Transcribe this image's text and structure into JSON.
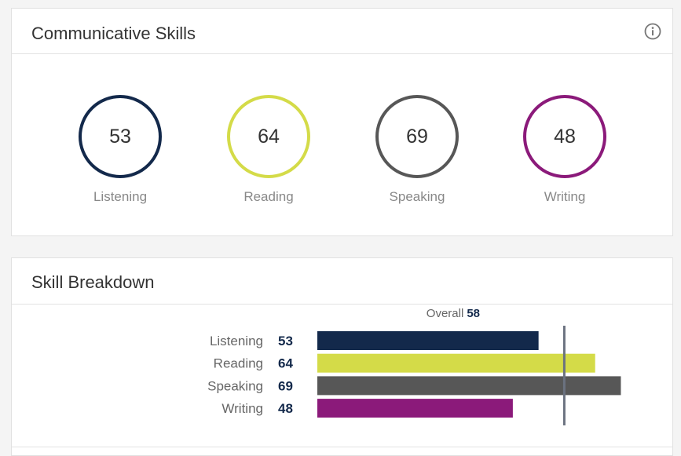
{
  "skills_card": {
    "title": "Communicative Skills",
    "skills": [
      {
        "label": "Listening",
        "score": "53",
        "color": "#13294b"
      },
      {
        "label": "Reading",
        "score": "64",
        "color": "#d4db48"
      },
      {
        "label": "Speaking",
        "score": "69",
        "color": "#575757"
      },
      {
        "label": "Writing",
        "score": "48",
        "color": "#8b1a7a"
      }
    ]
  },
  "breakdown_card": {
    "title": "Skill Breakdown",
    "overall_label": "Overall",
    "overall_value": "58"
  },
  "chart_data": {
    "type": "bar",
    "orientation": "horizontal",
    "categories": [
      "Listening",
      "Reading",
      "Speaking",
      "Writing"
    ],
    "values": [
      53,
      64,
      69,
      48
    ],
    "colors": [
      "#13294b",
      "#d4db48",
      "#575757",
      "#8b1a7a"
    ],
    "reference_line": {
      "label": "Overall",
      "value": 58,
      "color": "#6b7280"
    },
    "xlim": [
      10,
      90
    ],
    "grid": false,
    "legend": "none"
  }
}
